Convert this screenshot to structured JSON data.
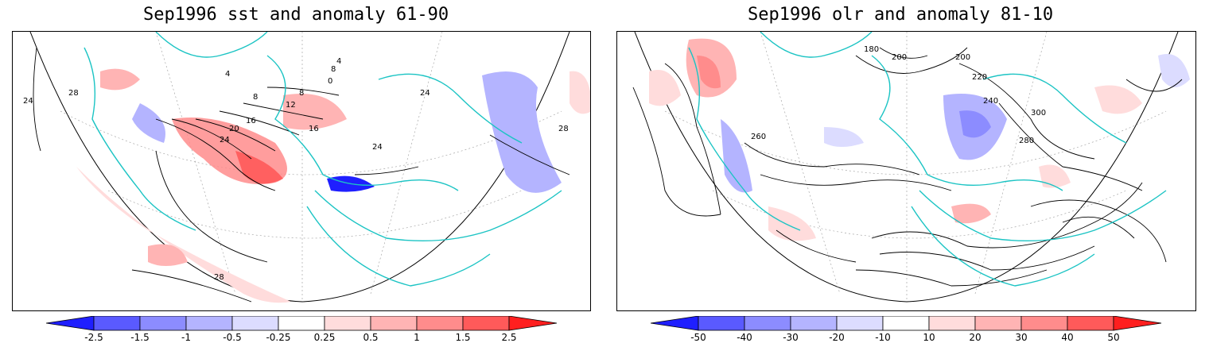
{
  "left_panel": {
    "title": "Sep1996 sst and anomaly 61-90",
    "contour_labels": [
      "0",
      "4",
      "4",
      "8",
      "8",
      "8",
      "12",
      "16",
      "16",
      "20",
      "24",
      "24",
      "24",
      "24",
      "28",
      "28",
      "28"
    ],
    "colorbar": {
      "ticks": [
        "-2.5",
        "-1.5",
        "-1",
        "-0.5",
        "-0.25",
        "0.25",
        "0.5",
        "1",
        "1.5",
        "2.5"
      ],
      "colors": [
        "#1f1fff",
        "#5a5aff",
        "#8c8cff",
        "#b4b4ff",
        "#dcdcff",
        "#ffffff",
        "#ffdcdc",
        "#ffb4b4",
        "#ff8c8c",
        "#ff5a5a",
        "#ff1f1f"
      ]
    }
  },
  "right_panel": {
    "title": "Sep1996 olr and anomaly 81-10",
    "contour_labels": [
      "180",
      "200",
      "200",
      "220",
      "240",
      "260",
      "280",
      "300"
    ],
    "colorbar": {
      "ticks": [
        "-50",
        "-40",
        "-30",
        "-20",
        "-10",
        "10",
        "20",
        "30",
        "40",
        "50"
      ],
      "colors": [
        "#1f1fff",
        "#5a5aff",
        "#8c8cff",
        "#b4b4ff",
        "#dcdcff",
        "#ffffff",
        "#ffdcdc",
        "#ffb4b4",
        "#ff8c8c",
        "#ff5a5a",
        "#ff1f1f"
      ]
    }
  }
}
